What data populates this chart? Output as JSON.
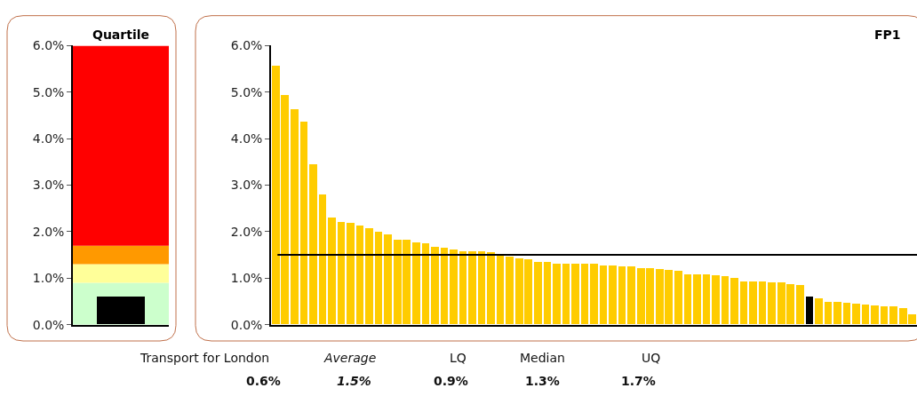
{
  "chart_data": [
    {
      "type": "bar",
      "title": "Quartile",
      "categories": [
        null
      ],
      "values": [
        0.6
      ],
      "color": "#000000",
      "tick_labels": "y",
      "bands": [
        {
          "axis": "y",
          "from": 0,
          "to": 0.9,
          "color": "#ccffcc"
        },
        {
          "axis": "y",
          "from": 0.9,
          "to": 1.3,
          "color": "#ffff99"
        },
        {
          "axis": "y",
          "from": 1.3,
          "to": 1.7,
          "color": "#ff9900"
        },
        {
          "axis": "y",
          "from": 1.7,
          "to": 6.0,
          "color": "#ff0000"
        }
      ],
      "ylim": [
        0,
        6
      ],
      "yticks": [
        {
          "value": 0,
          "label": "0.0%"
        },
        {
          "value": 1,
          "label": "1.0%"
        },
        {
          "value": 2,
          "label": "2.0%"
        },
        {
          "value": 3,
          "label": "3.0%"
        },
        {
          "value": 4,
          "label": "4.0%"
        },
        {
          "value": 5,
          "label": "5.0%"
        },
        {
          "value": 6,
          "label": "6.0%"
        }
      ]
    },
    {
      "type": "bar",
      "title": "FP1",
      "categories": [
        null,
        null,
        null,
        null,
        null,
        null,
        null,
        null,
        null,
        null,
        null,
        null,
        null,
        null,
        null,
        null,
        null,
        null,
        null,
        null,
        null,
        null,
        null,
        null,
        null,
        null,
        null,
        null,
        null,
        null,
        null,
        null,
        null,
        null,
        null,
        null,
        null,
        null,
        null,
        null,
        null,
        null,
        null,
        null,
        null,
        null,
        null,
        null,
        null,
        null,
        null,
        null,
        null,
        null,
        null,
        null,
        null,
        null,
        null,
        null,
        null,
        null,
        null,
        null,
        null,
        null,
        null,
        null,
        null
      ],
      "values": [
        5.57,
        4.93,
        4.63,
        4.36,
        3.45,
        2.8,
        2.29,
        2.21,
        2.19,
        2.12,
        2.07,
        1.99,
        1.93,
        1.82,
        1.82,
        1.76,
        1.75,
        1.67,
        1.65,
        1.61,
        1.58,
        1.58,
        1.58,
        1.56,
        1.52,
        1.45,
        1.41,
        1.39,
        1.35,
        1.34,
        1.3,
        1.3,
        1.3,
        1.3,
        1.3,
        1.26,
        1.26,
        1.25,
        1.25,
        1.21,
        1.21,
        1.18,
        1.17,
        1.15,
        1.07,
        1.07,
        1.07,
        1.05,
        1.03,
        1.0,
        0.93,
        0.93,
        0.92,
        0.91,
        0.9,
        0.87,
        0.85,
        0.6,
        0.55,
        0.48,
        0.48,
        0.46,
        0.44,
        0.42,
        0.4,
        0.38,
        0.38,
        0.34,
        0.22
      ],
      "colors": [
        "#ffcc00",
        "#ffcc00",
        "#ffcc00",
        "#ffcc00",
        "#ffcc00",
        "#ffcc00",
        "#ffcc00",
        "#ffcc00",
        "#ffcc00",
        "#ffcc00",
        "#ffcc00",
        "#ffcc00",
        "#ffcc00",
        "#ffcc00",
        "#ffcc00",
        "#ffcc00",
        "#ffcc00",
        "#ffcc00",
        "#ffcc00",
        "#ffcc00",
        "#ffcc00",
        "#ffcc00",
        "#ffcc00",
        "#ffcc00",
        "#ffcc00",
        "#ffcc00",
        "#ffcc00",
        "#ffcc00",
        "#ffcc00",
        "#ffcc00",
        "#ffcc00",
        "#ffcc00",
        "#ffcc00",
        "#ffcc00",
        "#ffcc00",
        "#ffcc00",
        "#ffcc00",
        "#ffcc00",
        "#ffcc00",
        "#ffcc00",
        "#ffcc00",
        "#ffcc00",
        "#ffcc00",
        "#ffcc00",
        "#ffcc00",
        "#ffcc00",
        "#ffcc00",
        "#ffcc00",
        "#ffcc00",
        "#ffcc00",
        "#ffcc00",
        "#ffcc00",
        "#ffcc00",
        "#ffcc00",
        "#ffcc00",
        "#ffcc00",
        "#ffcc00",
        "#000000",
        "#ffcc00",
        "#ffcc00",
        "#ffcc00",
        "#ffcc00",
        "#ffcc00",
        "#ffcc00",
        "#ffcc00",
        "#ffcc00",
        "#ffcc00",
        "#ffcc00",
        "#ffcc00"
      ],
      "ref_lines": [
        {
          "axis": "y",
          "value": 1.5,
          "color": "#000000"
        }
      ],
      "ylim": [
        0,
        6
      ],
      "yticks": [
        {
          "value": 0,
          "label": "0.0%"
        },
        {
          "value": 1,
          "label": "1.0%"
        },
        {
          "value": 2,
          "label": "2.0%"
        },
        {
          "value": 3,
          "label": "3.0%"
        },
        {
          "value": 4,
          "label": "4.0%"
        },
        {
          "value": 5,
          "label": "5.0%"
        },
        {
          "value": 6,
          "label": "6.0%"
        }
      ],
      "tick_labels": "y",
      "annotations": [
        "Transport for London",
        "Average",
        "LQ",
        "Median",
        "UQ",
        "0.6%",
        "1.5%",
        "0.9%",
        "1.3%",
        "1.7%"
      ]
    }
  ]
}
